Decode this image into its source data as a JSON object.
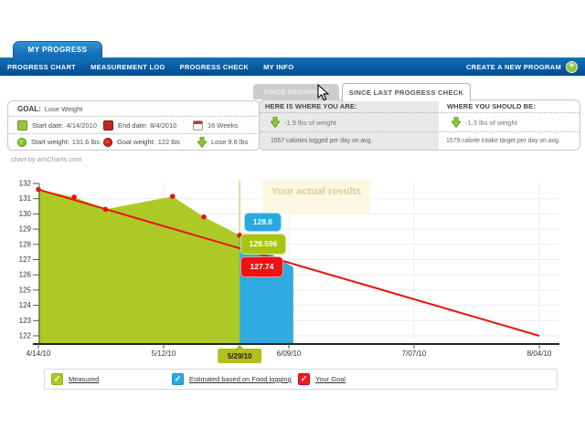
{
  "colors": {
    "brand_blue": "#0d65b0",
    "nav_dark": "#07508f",
    "measured_green": "#aec926",
    "estimated_blue": "#2fabdf",
    "goal_red": "#e8150d",
    "plus_green": "#8dc63f"
  },
  "header": {
    "app_tab": "MY PROGRESS",
    "nav_items": [
      "PROGRESS CHART",
      "MEASUREMENT LOG",
      "PROGRESS CHECK",
      "MY INFO"
    ],
    "create_program_label": "CREATE A NEW PROGRAM"
  },
  "period_tabs": {
    "inactive_label": "SINCE BEGINNING",
    "active_label": "SINCE LAST PROGRESS CHECK"
  },
  "goal_panel": {
    "goal_label": "GOAL:",
    "goal_value": "Lose Weight",
    "start_date": {
      "label": "Start date:",
      "value": "4/14/2010"
    },
    "end_date": {
      "label": "End date:",
      "value": "8/4/2010"
    },
    "duration": "16 Weeks",
    "start_weight": {
      "label": "Start weight:",
      "value": "131.6 lbs"
    },
    "goal_weight": {
      "label": "Goal weight:",
      "value": "122 lbs"
    },
    "weight_to_lose": "Lose 9.6 lbs"
  },
  "status_panel": {
    "current": {
      "title": "HERE IS WHERE YOU ARE:",
      "weight_change": "-1.9 lbs of weight",
      "calories": "1557 calories logged per day on avg."
    },
    "target": {
      "title": "WHERE YOU SHOULD BE:",
      "weight_change": "-1.3 lbs of weight",
      "calories": "1579 calorie intake target per day on avg."
    }
  },
  "chart_data": {
    "type": "area",
    "credit": "chart by amCharts.com",
    "tooltip": "Your actual results",
    "y_axis": {
      "min": 122,
      "max": 132,
      "step": 1
    },
    "x_axis": {
      "ticks": [
        {
          "day": 0,
          "label": "4/14/10"
        },
        {
          "day": 28,
          "label": "5/12/10"
        },
        {
          "day": 45,
          "label": "5/29/10",
          "highlighted": true
        },
        {
          "day": 56,
          "label": "6/09/10"
        },
        {
          "day": 84,
          "label": "7/07/10"
        },
        {
          "day": 112,
          "label": "8/04/10"
        }
      ]
    },
    "series": [
      {
        "name": "Measured",
        "type": "area",
        "color": "#adc926",
        "bullets": "#e8150d",
        "points": [
          [
            0,
            131.6
          ],
          [
            8,
            131.1
          ],
          [
            15,
            130.3
          ],
          [
            30,
            131.15
          ],
          [
            37,
            129.8
          ],
          [
            45,
            128.596
          ]
        ]
      },
      {
        "name": "Estimated based on Food logging",
        "type": "area",
        "color": "#2fabdf",
        "points": [
          [
            45,
            128.6
          ],
          [
            57,
            126.5
          ]
        ]
      },
      {
        "name": "Your Goal",
        "type": "line",
        "color": "#e8150d",
        "points": [
          [
            0,
            131.6
          ],
          [
            112,
            122
          ]
        ]
      }
    ],
    "hover": {
      "day": 45,
      "label": "5/29/10",
      "balloons": [
        {
          "series": "Estimated based on Food logging",
          "value": "128.6",
          "color": "#29a9e1"
        },
        {
          "series": "Measured",
          "value": "128.596",
          "color": "#a9c410"
        },
        {
          "series": "Your Goal",
          "value": "127.74",
          "color": "#ee1313"
        }
      ]
    },
    "legend": [
      {
        "label": "Measured",
        "color": "#aec926"
      },
      {
        "label": "Estimated based on Food logging",
        "color": "#29abe2"
      },
      {
        "label": "Your Goal",
        "color": "#ed1c24"
      }
    ]
  }
}
